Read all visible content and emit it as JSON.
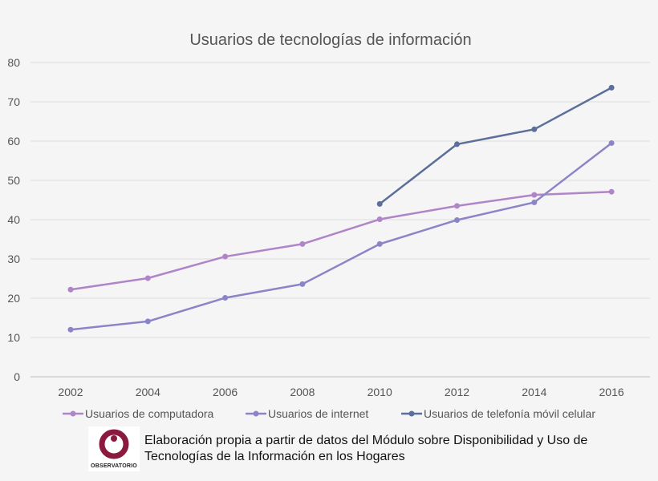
{
  "chart_data": {
    "type": "line",
    "title": "Usuarios de tecnologías de información",
    "x": [
      2002,
      2004,
      2006,
      2008,
      2010,
      2012,
      2014,
      2016
    ],
    "x_tick_labels": [
      "2002",
      "2004",
      "2006",
      "2008",
      "2010",
      "2012",
      "2014",
      "2016"
    ],
    "y_tick_labels": [
      "0",
      "10",
      "20",
      "30",
      "40",
      "50",
      "60",
      "70",
      "80"
    ],
    "ylim": [
      0,
      80
    ],
    "grid": true,
    "legend_position": "bottom",
    "series": [
      {
        "name": "Usuarios de computadora",
        "color": "#b085c8",
        "values": [
          22.2,
          25.1,
          30.6,
          33.8,
          40.1,
          43.5,
          46.3,
          47.1
        ]
      },
      {
        "name": "Usuarios de internet",
        "color": "#8b85c8",
        "values": [
          12.0,
          14.1,
          20.1,
          23.6,
          33.8,
          39.9,
          44.4,
          59.5
        ]
      },
      {
        "name": "Usuarios de telefonía móvil celular",
        "color": "#5b6f9a",
        "values": [
          null,
          null,
          null,
          null,
          44.0,
          59.2,
          63.0,
          73.6
        ]
      }
    ]
  },
  "footer": {
    "logo_text": "OBSERVATORIO",
    "logo_color": "#8b1a3e",
    "source_text": "Elaboración propia a partir de datos del Módulo sobre Disponibilidad y Uso de Tecnologías de la Información en los Hogares"
  }
}
